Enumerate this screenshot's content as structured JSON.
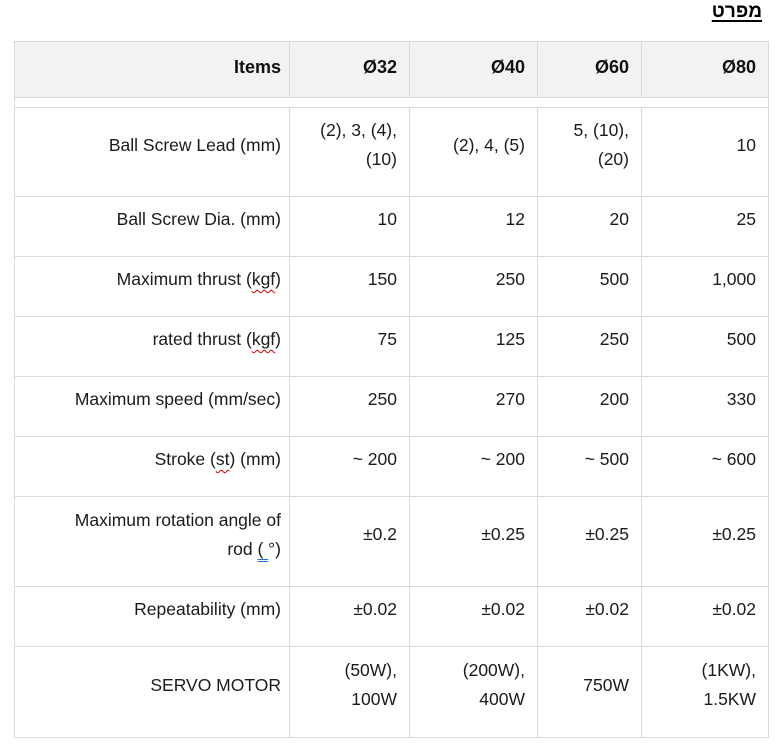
{
  "page": {
    "title": "מפרט"
  },
  "colors": {
    "border": "#d9d9d9",
    "header_bg": "#f2f2f2",
    "text": "#1b1b1b",
    "spell_check_mark": "#cc0000",
    "grammar_check_mark": "#2b6cdf"
  },
  "table": {
    "headers": [
      "Items",
      "Ø32",
      "Ø40",
      "Ø60",
      "Ø80"
    ],
    "rows": [
      {
        "label_parts": [
          {
            "text": "Ball Screw Lead (mm)"
          }
        ],
        "values": [
          "(2), 3, (4),\n(10)",
          "(2), 4, (5)",
          "5, (10),\n(20)",
          "10"
        ]
      },
      {
        "label_parts": [
          {
            "text": "Ball Screw Dia. (mm)"
          }
        ],
        "values": [
          "10",
          "12",
          "20",
          "25"
        ]
      },
      {
        "label_parts": [
          {
            "text": "Maximum thrust ("
          },
          {
            "text": "kgf",
            "mark": "spell"
          },
          {
            "text": ")"
          }
        ],
        "values": [
          "150",
          "250",
          "500",
          "1,000"
        ]
      },
      {
        "label_parts": [
          {
            "text": "rated thrust ("
          },
          {
            "text": "kgf",
            "mark": "spell"
          },
          {
            "text": ")"
          }
        ],
        "values": [
          "75",
          "125",
          "250",
          "500"
        ]
      },
      {
        "label_parts": [
          {
            "text": "Maximum speed (mm/sec)"
          }
        ],
        "values": [
          "250",
          "270",
          "200",
          "330"
        ]
      },
      {
        "label_parts": [
          {
            "text": "Stroke ("
          },
          {
            "text": "st",
            "mark": "spell"
          },
          {
            "text": ") (mm)"
          }
        ],
        "values": [
          "~ 200",
          "~ 200",
          "~ 500",
          "~ 600"
        ]
      },
      {
        "label_parts": [
          {
            "text": "Maximum rotation angle of\nrod "
          },
          {
            "text": "( ",
            "mark": "grammar"
          },
          {
            "text": "°)"
          }
        ],
        "values": [
          "±0.2",
          "±0.25",
          "±0.25",
          "±0.25"
        ]
      },
      {
        "label_parts": [
          {
            "text": "Repeatability (mm)"
          }
        ],
        "values": [
          "±0.02",
          "±0.02",
          "±0.02",
          "±0.02"
        ]
      },
      {
        "label_parts": [
          {
            "text": "SERVO MOTOR"
          }
        ],
        "values": [
          "(50W),\n100W",
          "(200W),\n400W",
          "750W",
          "(1KW),\n1.5KW"
        ]
      }
    ]
  }
}
